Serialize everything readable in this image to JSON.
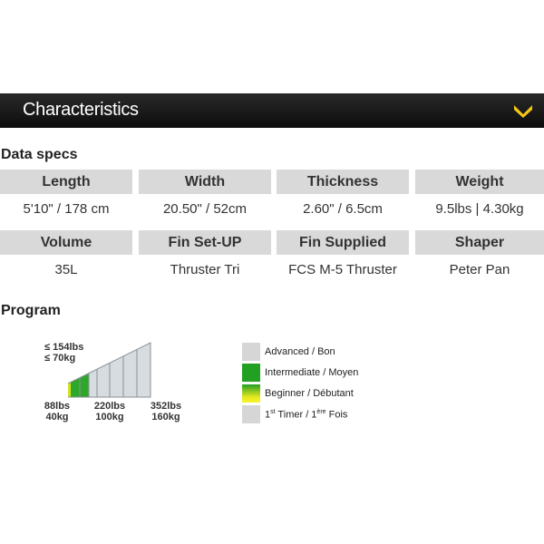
{
  "header": {
    "title": "Characteristics",
    "toggle_icon": "chevron-down-icon",
    "accent": "#f5c518"
  },
  "data_specs": {
    "title": "Data specs",
    "rows": [
      {
        "headers": [
          "Length",
          "Width",
          "Thickness",
          "Weight"
        ],
        "values": [
          "5'10\" / 178 cm",
          "20.50\" / 52cm",
          "2.60\" / 6.5cm",
          "9.5lbs | 4.30kg"
        ]
      },
      {
        "headers": [
          "Volume",
          "Fin Set-UP",
          "Fin Supplied",
          "Shaper"
        ],
        "values": [
          "35L",
          "Thruster Tri",
          "FCS M-5 Thruster",
          "Peter Pan"
        ]
      }
    ]
  },
  "program": {
    "title": "Program",
    "max_label_lbs": "≤ 154lbs",
    "max_label_kg": "≤ 70kg",
    "axis": [
      {
        "lbs": "88lbs",
        "kg": "40kg"
      },
      {
        "lbs": "220lbs",
        "kg": "100kg"
      },
      {
        "lbs": "352lbs",
        "kg": "160kg"
      }
    ],
    "ranges": [
      {
        "level": "beginner",
        "from_lbs": 88,
        "to_lbs": 95
      },
      {
        "level": "intermediate",
        "from_lbs": 95,
        "to_lbs": 154
      },
      {
        "level": "advanced",
        "from_lbs": 154,
        "to_lbs": 352
      }
    ],
    "legend": [
      {
        "label": "Advanced / Bon",
        "color": "#d6d6d6"
      },
      {
        "label": "Intermediate / Moyen",
        "color": "#22a022"
      },
      {
        "label": "Beginner / Débutant",
        "color": "gradient green-yellow"
      },
      {
        "label_pre": "1",
        "label_sup1": "st",
        "label_mid": " Timer / 1",
        "label_sup2": "ère",
        "label_post": " Fois",
        "color": "#d6d6d6"
      }
    ]
  }
}
